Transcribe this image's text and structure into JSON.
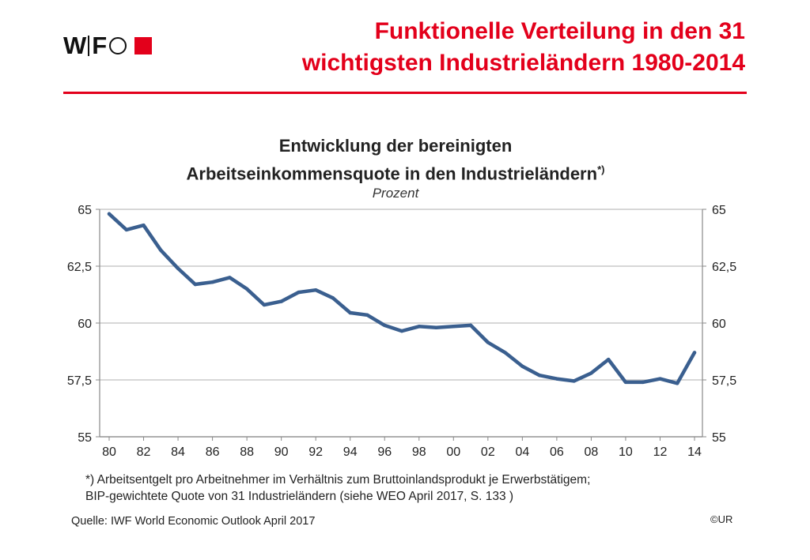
{
  "logo": {
    "text_w": "W",
    "text_f": "F"
  },
  "header": {
    "title_line1": "Funktionelle Verteilung in den 31",
    "title_line2": "wichtigsten Industrieländern 1980-2014"
  },
  "colors": {
    "accent": "#e3001b",
    "series": "#3a5f8f",
    "grid": "#bfbfbf"
  },
  "chart_data": {
    "type": "line",
    "title_line1": "Entwicklung der bereinigten",
    "title_line2": "Arbeitseinkommensquote in den Industrieländern",
    "title_marker": "*)",
    "unit_label": "Prozent",
    "ylim": [
      55,
      65
    ],
    "y_ticks": [
      65,
      62.5,
      60,
      57.5,
      55
    ],
    "y_tick_labels": [
      "65",
      "62,5",
      "60",
      "57,5",
      "55"
    ],
    "x_tick_values": [
      1980,
      1982,
      1984,
      1986,
      1988,
      1990,
      1992,
      1994,
      1996,
      1998,
      2000,
      2002,
      2004,
      2006,
      2008,
      2010,
      2012,
      2014
    ],
    "x_tick_labels": [
      "80",
      "82",
      "84",
      "86",
      "88",
      "90",
      "92",
      "94",
      "96",
      "98",
      "00",
      "02",
      "04",
      "06",
      "08",
      "10",
      "12",
      "14"
    ],
    "grid": true,
    "dual_y_axis": true,
    "series": [
      {
        "x": [
          1980,
          1981,
          1982,
          1983,
          1984,
          1985,
          1986,
          1987,
          1988,
          1989,
          1990,
          1991,
          1992,
          1993,
          1994,
          1995,
          1996,
          1997,
          1998,
          1999,
          2000,
          2001,
          2002,
          2003,
          2004,
          2005,
          2006,
          2007,
          2008,
          2009,
          2010,
          2011,
          2012,
          2013,
          2014
        ],
        "values": [
          64.8,
          64.1,
          64.3,
          63.2,
          62.4,
          61.7,
          61.8,
          62.0,
          61.5,
          60.8,
          60.95,
          61.35,
          61.45,
          61.1,
          60.45,
          60.35,
          59.9,
          59.65,
          59.85,
          59.8,
          59.85,
          59.9,
          59.15,
          58.7,
          58.1,
          57.7,
          57.55,
          57.45,
          57.8,
          58.4,
          57.4,
          57.4,
          57.55,
          57.35,
          58.7
        ]
      }
    ]
  },
  "footnote": {
    "line1": "*) Arbeitsentgelt pro Arbeitnehmer im Verhältnis zum Bruttoinlandsprodukt je Erwerbstätigem;",
    "line2": "BIP-gewichtete Quote von 31 Industrieländern (siehe WEO April 2017, S. 133 )"
  },
  "source": "Quelle: IWF World Economic Outlook April 2017",
  "copyright": "©UR"
}
